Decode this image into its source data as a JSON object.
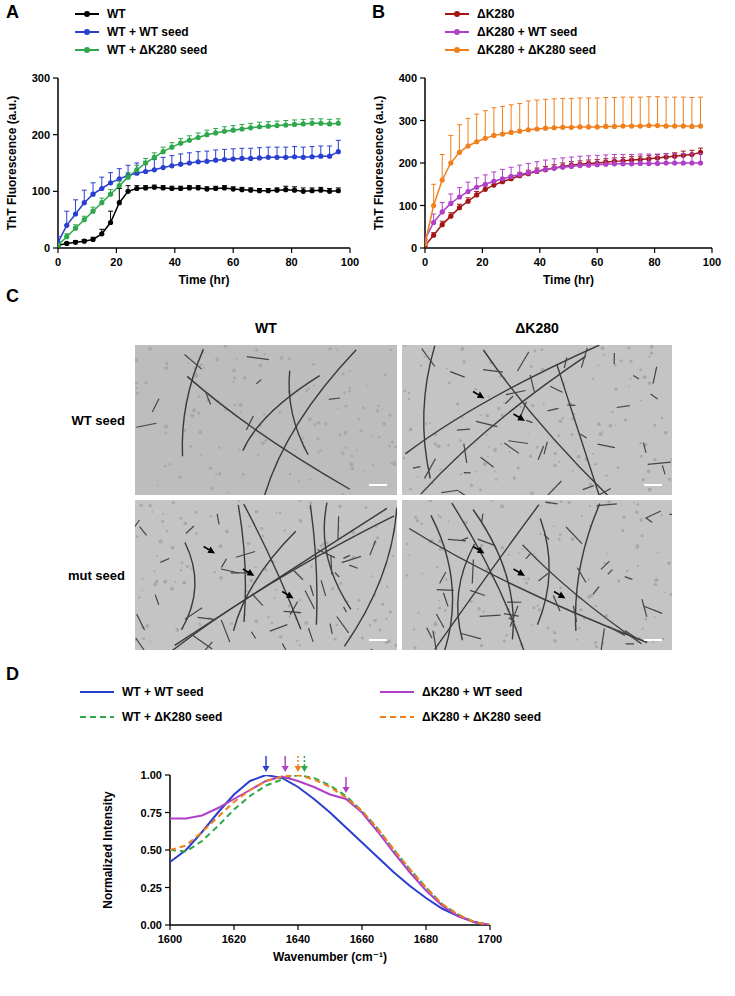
{
  "chart_data": [
    {
      "type": "line",
      "panel": "A",
      "x_label": "Time (hr)",
      "y_label": "ThT Fluorescence (a.u.)",
      "xlim": [
        0,
        100
      ],
      "xticks": [
        0,
        20,
        40,
        60,
        80,
        100
      ],
      "ylim": [
        0,
        300
      ],
      "yticks": [
        0,
        100,
        200,
        300
      ],
      "grid": false,
      "legend": "top",
      "x": [
        0,
        3,
        6,
        9,
        12,
        15,
        18,
        21,
        24,
        27,
        30,
        33,
        36,
        39,
        42,
        45,
        48,
        51,
        54,
        57,
        60,
        63,
        66,
        69,
        72,
        75,
        78,
        81,
        84,
        87,
        90,
        93,
        96
      ],
      "series": [
        {
          "name": "WT",
          "color": "#000000",
          "marker": "circle",
          "line_style": "solid",
          "values": [
            5,
            8,
            10,
            12,
            15,
            25,
            45,
            80,
            100,
            105,
            106,
            107,
            106,
            105,
            105,
            106,
            106,
            104,
            105,
            106,
            104,
            103,
            102,
            101,
            101,
            102,
            103,
            102,
            100,
            101,
            102,
            100,
            101
          ],
          "errors": [
            2,
            2,
            3,
            3,
            4,
            8,
            20,
            25,
            10,
            5,
            4,
            4,
            4,
            4,
            4,
            4,
            4,
            4,
            4,
            4,
            4,
            4,
            4,
            4,
            4,
            4,
            6,
            6,
            6,
            5,
            5,
            5,
            5
          ]
        },
        {
          "name": "WT + WT seed",
          "color": "#2a3fd0",
          "marker": "circle",
          "line_style": "solid",
          "values": [
            10,
            40,
            60,
            80,
            95,
            105,
            115,
            122,
            128,
            132,
            135,
            138,
            142,
            145,
            148,
            150,
            152,
            153,
            155,
            156,
            157,
            158,
            158,
            159,
            160,
            160,
            160,
            161,
            160,
            161,
            162,
            162,
            170
          ],
          "errors": [
            10,
            25,
            25,
            22,
            20,
            20,
            18,
            18,
            18,
            18,
            18,
            18,
            18,
            18,
            18,
            18,
            18,
            18,
            18,
            18,
            18,
            18,
            18,
            18,
            18,
            18,
            18,
            18,
            18,
            18,
            18,
            18,
            20
          ]
        },
        {
          "name": "WT + ΔK280 seed",
          "color": "#2ea84a",
          "marker": "circle",
          "line_style": "solid",
          "values": [
            5,
            20,
            35,
            50,
            65,
            80,
            95,
            110,
            125,
            138,
            150,
            160,
            170,
            178,
            185,
            190,
            195,
            200,
            203,
            206,
            208,
            210,
            212,
            214,
            215,
            216,
            217,
            218,
            219,
            220,
            220,
            219,
            220
          ],
          "errors": [
            3,
            5,
            6,
            6,
            7,
            8,
            8,
            8,
            8,
            8,
            8,
            8,
            8,
            8,
            8,
            8,
            8,
            8,
            8,
            8,
            8,
            8,
            8,
            8,
            8,
            8,
            8,
            8,
            8,
            8,
            8,
            8,
            8
          ]
        }
      ]
    },
    {
      "type": "line",
      "panel": "B",
      "x_label": "Time (hr)",
      "y_label": "ThT Fluorescence (a.u.)",
      "xlim": [
        0,
        100
      ],
      "xticks": [
        0,
        20,
        40,
        60,
        80,
        100
      ],
      "ylim": [
        0,
        400
      ],
      "yticks": [
        0,
        100,
        200,
        300,
        400
      ],
      "grid": false,
      "legend": "top",
      "x": [
        0,
        3,
        6,
        9,
        12,
        15,
        18,
        21,
        24,
        27,
        30,
        33,
        36,
        39,
        42,
        45,
        48,
        51,
        54,
        57,
        60,
        63,
        66,
        69,
        72,
        75,
        78,
        81,
        84,
        87,
        90,
        93,
        96
      ],
      "series": [
        {
          "name": "ΔK280",
          "color": "#a31515",
          "marker": "circle",
          "line_style": "solid",
          "values": [
            5,
            30,
            55,
            75,
            95,
            110,
            125,
            138,
            148,
            156,
            163,
            170,
            175,
            180,
            184,
            188,
            192,
            195,
            197,
            199,
            200,
            202,
            204,
            205,
            207,
            208,
            210,
            212,
            214,
            216,
            218,
            220,
            225
          ],
          "errors": [
            3,
            6,
            8,
            8,
            8,
            8,
            8,
            8,
            8,
            8,
            8,
            8,
            8,
            8,
            8,
            8,
            8,
            8,
            8,
            8,
            8,
            8,
            8,
            8,
            8,
            8,
            8,
            8,
            8,
            8,
            10,
            10,
            10
          ]
        },
        {
          "name": "ΔK280 + WT seed",
          "color": "#b040c8",
          "marker": "circle",
          "line_style": "solid",
          "values": [
            20,
            60,
            85,
            105,
            120,
            133,
            143,
            150,
            157,
            163,
            168,
            173,
            177,
            181,
            185,
            188,
            190,
            192,
            194,
            195,
            196,
            197,
            198,
            198,
            198,
            199,
            199,
            199,
            200,
            200,
            200,
            200,
            200
          ],
          "errors": [
            10,
            20,
            22,
            22,
            22,
            22,
            22,
            22,
            22,
            22,
            22,
            22,
            22,
            22,
            22,
            22,
            22,
            22,
            22,
            22,
            22,
            22,
            22,
            22,
            22,
            22,
            22,
            22,
            22,
            22,
            22,
            22,
            22
          ]
        },
        {
          "name": "ΔK280 + ΔK280 seed",
          "color": "#f07f1c",
          "marker": "circle",
          "line_style": "solid",
          "values": [
            10,
            100,
            160,
            200,
            225,
            240,
            250,
            258,
            265,
            268,
            272,
            275,
            278,
            280,
            282,
            283,
            284,
            284,
            285,
            285,
            285,
            286,
            286,
            287,
            287,
            287,
            288,
            288,
            287,
            287,
            287,
            286,
            287
          ],
          "errors": [
            10,
            50,
            60,
            65,
            65,
            65,
            65,
            65,
            65,
            65,
            65,
            65,
            68,
            68,
            68,
            68,
            68,
            68,
            68,
            68,
            68,
            68,
            68,
            68,
            68,
            68,
            68,
            68,
            68,
            68,
            68,
            68,
            68
          ]
        }
      ]
    },
    {
      "type": "line",
      "panel": "D",
      "x_label": "Wavenumber (cm⁻¹)",
      "y_label": "Normalized Intensity",
      "xlim": [
        1600,
        1700
      ],
      "xticks": [
        1600,
        1620,
        1640,
        1660,
        1680,
        1700
      ],
      "ylim": [
        0,
        1
      ],
      "yticks": [
        {
          "value": 0,
          "label": "0.00"
        },
        {
          "value": 0.25,
          "label": "0.25"
        },
        {
          "value": 0.5,
          "label": "0.50"
        },
        {
          "value": 0.75,
          "label": "0.75"
        },
        {
          "value": 1,
          "label": "1.00"
        }
      ],
      "grid": false,
      "legend": "top",
      "x": [
        1600,
        1605,
        1610,
        1615,
        1620,
        1625,
        1630,
        1635,
        1640,
        1645,
        1650,
        1655,
        1660,
        1665,
        1670,
        1675,
        1680,
        1685,
        1690,
        1695,
        1700
      ],
      "series": [
        {
          "name": "WT + WT seed",
          "color": "#2a3fd0",
          "line_style": "solid",
          "values": [
            0.42,
            0.5,
            0.62,
            0.75,
            0.87,
            0.96,
            1.0,
            0.98,
            0.92,
            0.84,
            0.75,
            0.65,
            0.55,
            0.45,
            0.35,
            0.26,
            0.18,
            0.11,
            0.06,
            0.02,
            0.0
          ]
        },
        {
          "name": "WT + ΔK280 seed",
          "color": "#2ea84a",
          "line_style": "dashed",
          "values": [
            0.5,
            0.49,
            0.56,
            0.66,
            0.77,
            0.86,
            0.93,
            0.97,
            1.0,
            0.98,
            0.93,
            0.86,
            0.76,
            0.64,
            0.5,
            0.37,
            0.25,
            0.14,
            0.07,
            0.02,
            0.0
          ]
        },
        {
          "name": "ΔK280 + WT seed",
          "color": "#b040c8",
          "line_style": "solid",
          "values": [
            0.71,
            0.71,
            0.73,
            0.78,
            0.84,
            0.9,
            0.96,
            0.99,
            0.96,
            0.92,
            0.87,
            0.84,
            0.75,
            0.62,
            0.48,
            0.35,
            0.23,
            0.13,
            0.06,
            0.02,
            0.0
          ]
        },
        {
          "name": "ΔK280 + ΔK280 seed",
          "color": "#f07f1c",
          "line_style": "dashed",
          "values": [
            0.5,
            0.53,
            0.62,
            0.72,
            0.82,
            0.9,
            0.96,
            0.99,
            1.0,
            0.97,
            0.92,
            0.85,
            0.76,
            0.64,
            0.5,
            0.37,
            0.25,
            0.14,
            0.07,
            0.02,
            0.0
          ]
        }
      ],
      "arrows": [
        {
          "x": 1630,
          "y": 1.02,
          "color": "#2a3fd0",
          "line_style": "solid"
        },
        {
          "x": 1636,
          "y": 1.02,
          "color": "#b040c8",
          "line_style": "solid"
        },
        {
          "x": 1640,
          "y": 1.02,
          "color": "#f07f1c",
          "line_style": "dotted"
        },
        {
          "x": 1642,
          "y": 1.02,
          "color": "#2ea84a",
          "line_style": "dotted"
        },
        {
          "x": 1655,
          "y": 0.88,
          "color": "#b040c8",
          "line_style": "solid"
        }
      ]
    }
  ],
  "micrographs": {
    "panel": "C",
    "columns": [
      "WT",
      "ΔK280"
    ],
    "rows": [
      "WT seed",
      "mut seed"
    ]
  }
}
